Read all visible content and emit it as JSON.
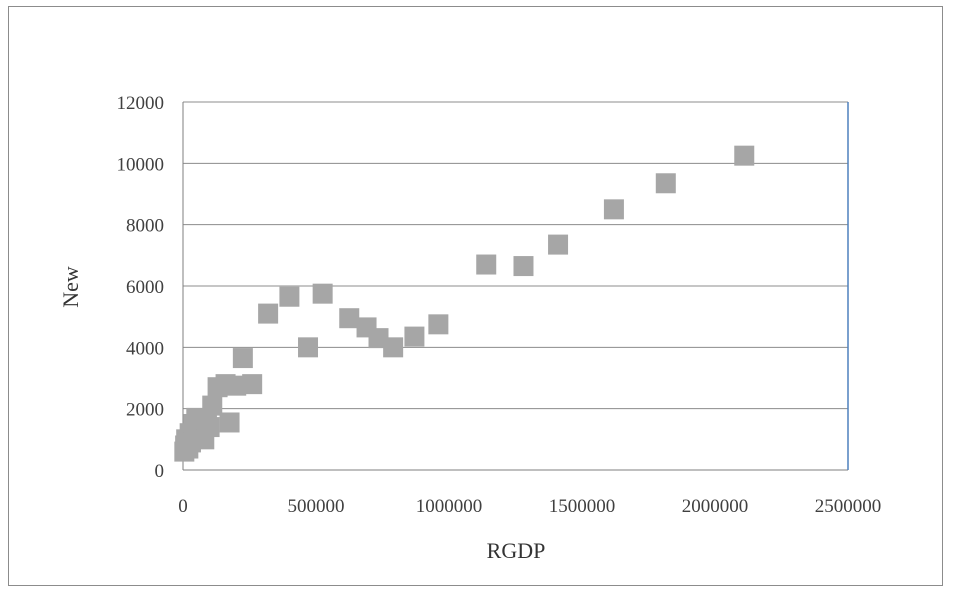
{
  "chart_data": {
    "type": "scatter",
    "xlabel": "RGDP",
    "ylabel": "New",
    "xlim": [
      0,
      2500000
    ],
    "ylim": [
      0,
      12000
    ],
    "x_ticks": [
      0,
      500000,
      1000000,
      1500000,
      2000000,
      2500000
    ],
    "y_ticks": [
      0,
      2000,
      4000,
      6000,
      8000,
      10000,
      12000
    ],
    "x_tick_labels": [
      "0",
      "500000",
      "1000000",
      "1500000",
      "2000000",
      "2500000"
    ],
    "y_tick_labels": [
      "0",
      "2000",
      "4000",
      "6000",
      "8000",
      "10000",
      "12000"
    ],
    "grid": "horizontal",
    "legend": "none",
    "marker": "square",
    "colors": {
      "marker": "#a6a6a6",
      "grid": "#8c8c8c",
      "right_border": "#4f81bd"
    },
    "points": [
      {
        "x": 5000,
        "y": 600
      },
      {
        "x": 8000,
        "y": 800
      },
      {
        "x": 12000,
        "y": 1000
      },
      {
        "x": 20000,
        "y": 700
      },
      {
        "x": 25000,
        "y": 1200
      },
      {
        "x": 30000,
        "y": 900
      },
      {
        "x": 40000,
        "y": 1500
      },
      {
        "x": 50000,
        "y": 1700
      },
      {
        "x": 60000,
        "y": 1100
      },
      {
        "x": 70000,
        "y": 1300
      },
      {
        "x": 80000,
        "y": 1000
      },
      {
        "x": 90000,
        "y": 1600
      },
      {
        "x": 100000,
        "y": 1400
      },
      {
        "x": 110000,
        "y": 2100
      },
      {
        "x": 130000,
        "y": 2700
      },
      {
        "x": 160000,
        "y": 2800
      },
      {
        "x": 175000,
        "y": 1550
      },
      {
        "x": 200000,
        "y": 2750
      },
      {
        "x": 225000,
        "y": 3650
      },
      {
        "x": 260000,
        "y": 2800
      },
      {
        "x": 320000,
        "y": 5100
      },
      {
        "x": 400000,
        "y": 5650
      },
      {
        "x": 470000,
        "y": 4000
      },
      {
        "x": 525000,
        "y": 5750
      },
      {
        "x": 625000,
        "y": 4950
      },
      {
        "x": 690000,
        "y": 4650
      },
      {
        "x": 735000,
        "y": 4300
      },
      {
        "x": 790000,
        "y": 4000
      },
      {
        "x": 870000,
        "y": 4350
      },
      {
        "x": 960000,
        "y": 4750
      },
      {
        "x": 1140000,
        "y": 6700
      },
      {
        "x": 1280000,
        "y": 6650
      },
      {
        "x": 1410000,
        "y": 7350
      },
      {
        "x": 1620000,
        "y": 8500
      },
      {
        "x": 1815000,
        "y": 9350
      },
      {
        "x": 2110000,
        "y": 10250
      }
    ]
  }
}
